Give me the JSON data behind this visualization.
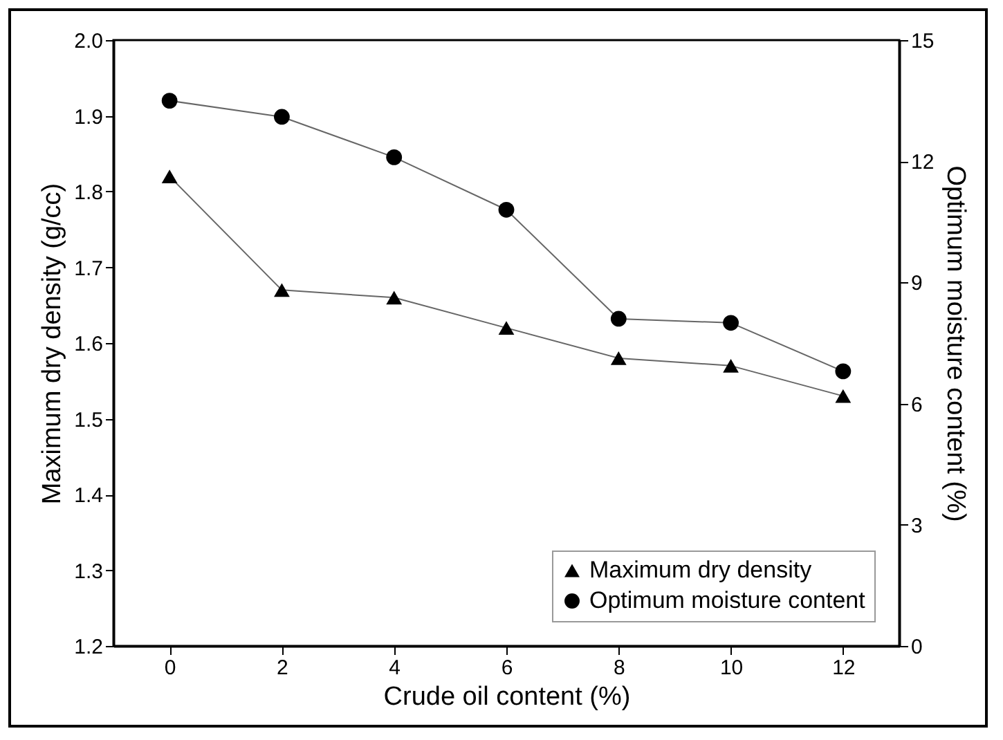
{
  "chart_data": {
    "type": "line",
    "xlabel": "Crude oil content (%)",
    "ylabel": "Maximum dry density (g/cc)",
    "y2label": "Optimum moisture content (%)",
    "x": [
      0,
      2,
      4,
      6,
      8,
      10,
      12
    ],
    "xlim": [
      -1,
      13
    ],
    "xticks": [
      0,
      2,
      4,
      6,
      8,
      10,
      12
    ],
    "ylim": [
      1.2,
      2.0
    ],
    "yticks": [
      1.2,
      1.3,
      1.4,
      1.5,
      1.6,
      1.7,
      1.8,
      1.9,
      {
        "value": 2.0,
        "label": "2.0"
      }
    ],
    "y2lim": [
      0,
      15
    ],
    "y2ticks": [
      0,
      3,
      6,
      9,
      12,
      15
    ],
    "series": [
      {
        "name": "Maximum dry density",
        "color": "#000000",
        "marker": "triangle",
        "values": [
          1.82,
          1.67,
          1.66,
          1.62,
          1.58,
          1.57,
          1.53
        ]
      },
      {
        "name": "Optimum moisture content",
        "color": "#000000",
        "marker": "circle",
        "axis": "y2",
        "values": [
          13.5,
          13.1,
          12.1,
          10.8,
          8.1,
          8.0,
          6.8
        ]
      }
    ],
    "legend": "bottom right",
    "grid": false
  }
}
